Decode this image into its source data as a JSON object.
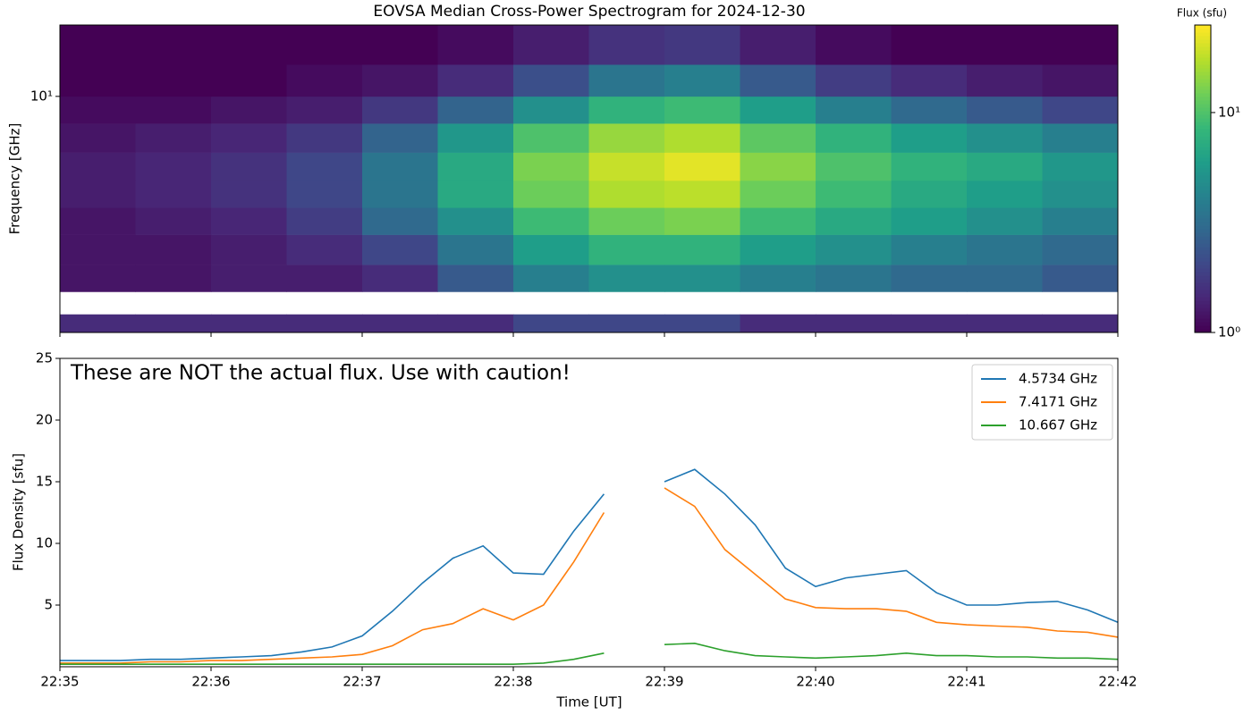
{
  "chart_data": [
    {
      "type": "heatmap",
      "title": "EOVSA Median Cross-Power Spectrogram for 2024-12-30",
      "y_label": "Frequency [GHz]",
      "y_scale": "log",
      "ylim": [
        1.43,
        18
      ],
      "yticks": [
        {
          "value": 10,
          "label": "10¹"
        }
      ],
      "x_bins": [
        1355,
        1355.5,
        1356,
        1356.5,
        1357,
        1357.5,
        1358,
        1358.5,
        1359,
        1359.5,
        1360,
        1360.5,
        1361,
        1361.5,
        1362
      ],
      "y_bins": [
        1.43,
        1.66,
        2.0,
        2.5,
        3.2,
        4,
        5,
        6.3,
        8,
        10,
        13,
        18
      ],
      "values": [
        [
          1.5,
          1.5,
          1.5,
          1.5,
          1.5,
          1.5,
          2,
          2,
          2,
          1.5,
          1.5,
          1.5,
          1.5,
          1.5
        ],
        [
          null,
          null,
          null,
          null,
          null,
          null,
          null,
          null,
          null,
          null,
          null,
          null,
          null,
          null
        ],
        [
          1.2,
          1.2,
          1.3,
          1.3,
          1.5,
          2.5,
          4,
          5,
          5,
          4,
          3.5,
          3,
          3,
          2.5
        ],
        [
          1.2,
          1.2,
          1.3,
          1.5,
          2,
          3.5,
          6,
          8,
          8,
          6,
          5,
          4,
          3.5,
          3
        ],
        [
          1.2,
          1.3,
          1.4,
          1.8,
          3,
          5,
          9,
          12,
          13,
          9,
          7,
          6,
          5,
          4
        ],
        [
          1.3,
          1.4,
          1.6,
          2,
          3.5,
          7,
          12,
          17,
          18,
          12,
          9,
          7,
          6,
          5
        ],
        [
          1.3,
          1.4,
          1.6,
          2,
          3.5,
          7,
          13,
          19,
          22,
          14,
          10,
          8,
          7,
          5.5
        ],
        [
          1.2,
          1.3,
          1.4,
          1.7,
          2.8,
          5.5,
          10,
          15,
          17,
          11,
          8,
          6,
          5,
          4
        ],
        [
          1.1,
          1.1,
          1.2,
          1.3,
          1.7,
          2.8,
          5,
          8,
          9,
          6,
          4,
          3,
          2.5,
          2
        ],
        [
          1,
          1,
          1,
          1.1,
          1.2,
          1.5,
          2.2,
          3.5,
          4,
          2.5,
          1.8,
          1.5,
          1.3,
          1.2
        ],
        [
          1,
          1,
          1,
          1,
          1,
          1.1,
          1.3,
          1.6,
          1.7,
          1.3,
          1.1,
          1,
          1,
          1
        ]
      ],
      "colormap": "viridis",
      "clim": [
        1,
        25
      ],
      "colorbar_label": "Flux (sfu)",
      "colorbar_ticks": [
        {
          "value": 1,
          "label": "10⁰"
        },
        {
          "value": 10,
          "label": "10¹"
        }
      ]
    },
    {
      "type": "line",
      "annotation": "These are NOT the actual flux. Use with caution!",
      "x_label": "Time [UT]",
      "y_label": "Flux Density [sfu]",
      "xlim": [
        1355,
        1362
      ],
      "xticks": [
        {
          "value": 1355,
          "label": "22:35"
        },
        {
          "value": 1356,
          "label": "22:36"
        },
        {
          "value": 1357,
          "label": "22:37"
        },
        {
          "value": 1358,
          "label": "22:38"
        },
        {
          "value": 1359,
          "label": "22:39"
        },
        {
          "value": 1360,
          "label": "22:40"
        },
        {
          "value": 1361,
          "label": "22:41"
        },
        {
          "value": 1362,
          "label": "22:42"
        }
      ],
      "ylim": [
        0,
        25
      ],
      "yticks": [
        5,
        10,
        15,
        20,
        25
      ],
      "legend": "upper right",
      "x": [
        1355,
        1355.2,
        1355.4,
        1355.6,
        1355.8,
        1356,
        1356.2,
        1356.4,
        1356.6,
        1356.8,
        1357,
        1357.2,
        1357.4,
        1357.6,
        1357.8,
        1358,
        1358.2,
        1358.4,
        1358.6,
        1358.8,
        1359,
        1359.2,
        1359.4,
        1359.6,
        1359.8,
        1360,
        1360.2,
        1360.4,
        1360.6,
        1360.8,
        1361,
        1361.2,
        1361.4,
        1361.6,
        1361.8,
        1362
      ],
      "series": [
        {
          "name": "4.5734 GHz",
          "color": "#1f77b4",
          "values": [
            0.5,
            0.5,
            0.5,
            0.6,
            0.6,
            0.7,
            0.8,
            0.9,
            1.2,
            1.6,
            2.5,
            4.5,
            6.8,
            8.8,
            9.8,
            7.6,
            7.5,
            11,
            14,
            null,
            15,
            16,
            14,
            11.5,
            8,
            6.5,
            7.2,
            7.5,
            7.8,
            6,
            5,
            5,
            5.2,
            5.3,
            4.6,
            3.6
          ]
        },
        {
          "name": "7.4171 GHz",
          "color": "#ff7f0e",
          "values": [
            0.3,
            0.3,
            0.3,
            0.4,
            0.4,
            0.5,
            0.5,
            0.6,
            0.7,
            0.8,
            1.0,
            1.7,
            3.0,
            3.5,
            4.7,
            3.8,
            5.0,
            8.5,
            12.5,
            null,
            14.5,
            13,
            9.5,
            7.5,
            5.5,
            4.8,
            4.7,
            4.7,
            4.5,
            3.6,
            3.4,
            3.3,
            3.2,
            2.9,
            2.8,
            2.4
          ]
        },
        {
          "name": "10.667 GHz",
          "color": "#2ca02c",
          "values": [
            0.2,
            0.2,
            0.2,
            0.2,
            0.2,
            0.2,
            0.2,
            0.2,
            0.2,
            0.2,
            0.2,
            0.2,
            0.2,
            0.2,
            0.2,
            0.2,
            0.3,
            0.6,
            1.1,
            null,
            1.8,
            1.9,
            1.3,
            0.9,
            0.8,
            0.7,
            0.8,
            0.9,
            1.1,
            0.9,
            0.9,
            0.8,
            0.8,
            0.7,
            0.7,
            0.6
          ]
        }
      ]
    }
  ]
}
